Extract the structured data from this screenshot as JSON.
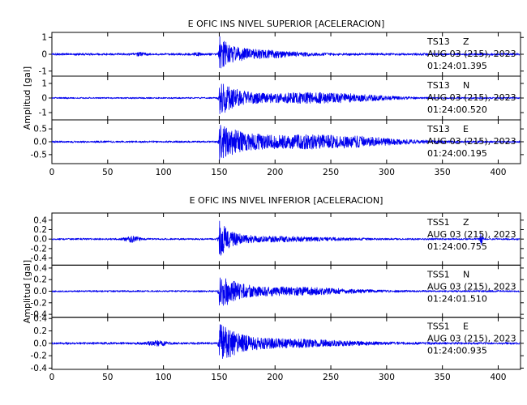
{
  "chart_data": [
    {
      "type": "line",
      "title": "E OFIC INS NIVEL SUPERIOR [ACELERACION]",
      "ylabel": "Amplitud [gal]",
      "xlim": [
        0,
        420
      ],
      "xticks": [
        "0",
        "50",
        "100",
        "150",
        "200",
        "250",
        "300",
        "350",
        "400"
      ],
      "panels": [
        {
          "channel": "TS13 Z",
          "station": "TS13",
          "component": "Z",
          "date": "AUG 03 (215), 2023",
          "time": "01:24:01.395",
          "ylim": [
            -1.3,
            1.3
          ],
          "yticks": [
            "1",
            "0",
            "-1"
          ],
          "color": "#0000ee",
          "trace": {
            "noise": 0.09,
            "onset": 150,
            "peak": 1.3,
            "decay": 8,
            "coda": 0.25,
            "coda_decay": 50,
            "coda_center": 175,
            "coda_width": 30,
            "bursts": [
              {
                "t": 79,
                "a": 0.12,
                "w": 3
              },
              {
                "t": 130,
                "a": 0.1,
                "w": 2
              }
            ]
          }
        },
        {
          "channel": "TS13 N",
          "station": "TS13",
          "component": "N",
          "date": "AUG 03 (215), 2023",
          "time": "01:24:00.520",
          "ylim": [
            -1.5,
            1.5
          ],
          "yticks": [
            "1",
            "0",
            "-1"
          ],
          "color": "#0000ee",
          "trace": {
            "noise": 0.07,
            "onset": 150,
            "peak": 1.4,
            "decay": 18,
            "coda": 0.4,
            "coda_decay": 35,
            "coda_center": 240,
            "coda_width": 40,
            "bursts": []
          }
        },
        {
          "channel": "TS13 E",
          "station": "TS13",
          "component": "E",
          "date": "AUG 03 (215), 2023",
          "time": "01:24:00.195",
          "ylim": [
            -0.85,
            0.85
          ],
          "yticks": [
            "0.5",
            "0.0",
            "-0.5"
          ],
          "color": "#0000ee",
          "trace": {
            "noise": 0.05,
            "onset": 150,
            "peak": 0.75,
            "decay": 25,
            "coda": 0.28,
            "coda_decay": 45,
            "coda_center": 245,
            "coda_width": 45,
            "bursts": []
          }
        }
      ]
    },
    {
      "type": "line",
      "title": "E OFIC INS NIVEL INFERIOR [ACELERACION]",
      "ylabel": "Amplitud [gal]",
      "xlim": [
        0,
        420
      ],
      "xticks": [
        "0",
        "50",
        "100",
        "150",
        "200",
        "250",
        "300",
        "350",
        "400"
      ],
      "panels": [
        {
          "channel": "TSS1 Z",
          "station": "TSS1",
          "component": "Z",
          "date": "AUG 03 (215), 2023",
          "time": "01:24:00.755",
          "ylim": [
            -0.55,
            0.55
          ],
          "yticks": [
            "0.4",
            "0.2",
            "0.0",
            "-0.2",
            "-0.4"
          ],
          "color": "#0000ee",
          "trace": {
            "noise": 0.025,
            "onset": 150,
            "peak": 0.45,
            "decay": 10,
            "coda": 0.05,
            "coda_decay": 60,
            "coda_center": 200,
            "coda_width": 40,
            "bursts": [
              {
                "t": 72,
                "a": 0.07,
                "w": 5
              },
              {
                "t": 385,
                "a": 0.15,
                "w": 1
              }
            ]
          }
        },
        {
          "channel": "TSS1 N",
          "station": "TSS1",
          "component": "N",
          "date": "AUG 03 (215), 2023",
          "time": "01:24:01.510",
          "ylim": [
            -0.45,
            0.45
          ],
          "yticks": [
            "0.4",
            "0.2",
            "0.0",
            "-0.2",
            "-0.4"
          ],
          "color": "#0000ee",
          "trace": {
            "noise": 0.02,
            "onset": 150,
            "peak": 0.4,
            "decay": 14,
            "coda": 0.07,
            "coda_decay": 50,
            "coda_center": 215,
            "coda_width": 40,
            "bursts": []
          }
        },
        {
          "channel": "TSS1 E",
          "station": "TSS1",
          "component": "E",
          "date": "AUG 03 (215), 2023",
          "time": "01:24:00.935",
          "ylim": [
            -0.42,
            0.42
          ],
          "yticks": [
            "0.4",
            "0.2",
            "0.0",
            "-0.2",
            "-0.4"
          ],
          "color": "#0000ee",
          "trace": {
            "noise": 0.025,
            "onset": 150,
            "peak": 0.38,
            "decay": 16,
            "coda": 0.06,
            "coda_decay": 55,
            "coda_center": 210,
            "coda_width": 45,
            "bursts": [
              {
                "t": 95,
                "a": 0.04,
                "w": 6
              }
            ]
          }
        }
      ]
    }
  ]
}
